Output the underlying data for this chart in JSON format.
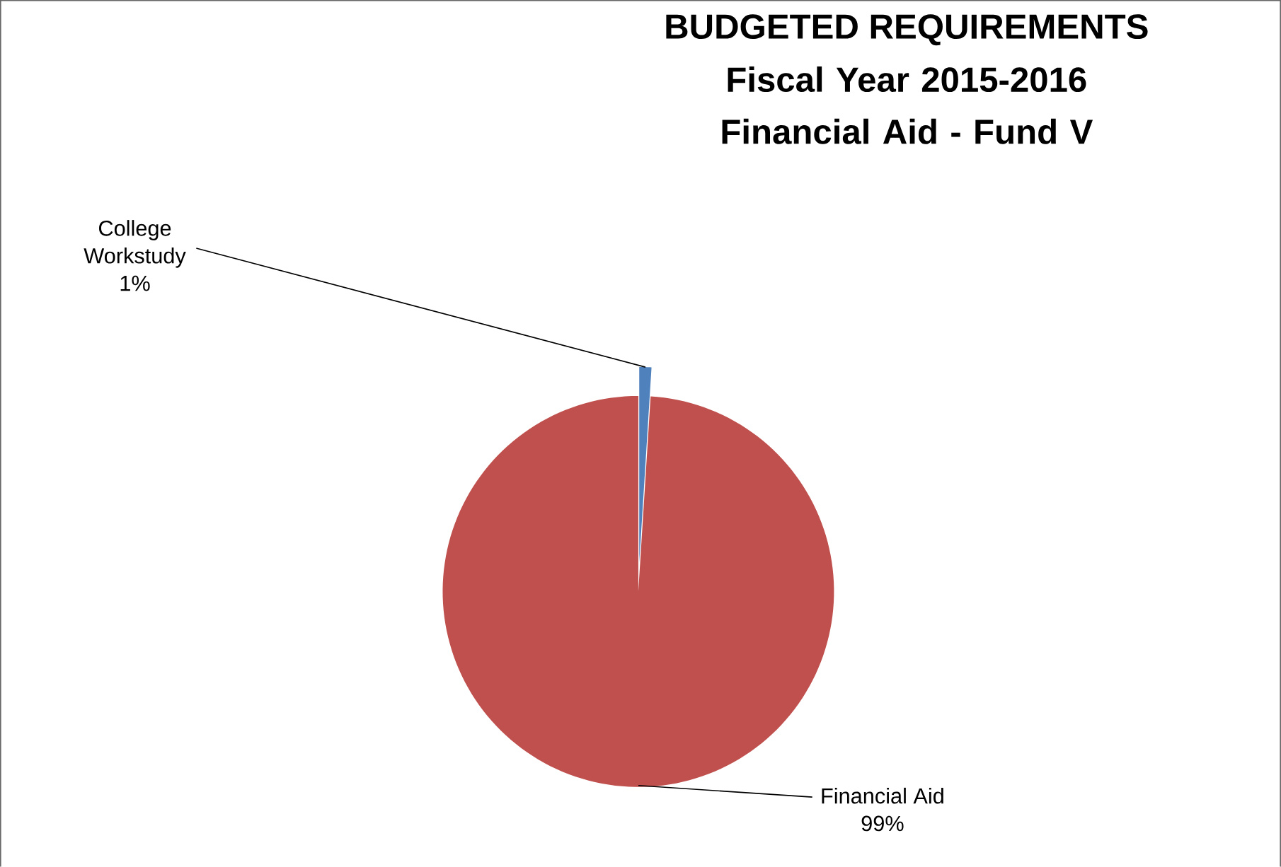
{
  "chart_data": {
    "type": "pie",
    "title": "BUDGETED REQUIREMENTS",
    "subtitle": "Fiscal Year 2015-2016 Financial Aid - Fund V",
    "categories": [
      "College Workstudy",
      "Financial Aid"
    ],
    "values": [
      1,
      99
    ],
    "colors": [
      "#4f81bd",
      "#c0504d"
    ],
    "value_labels": [
      "1%",
      "99%"
    ]
  }
}
